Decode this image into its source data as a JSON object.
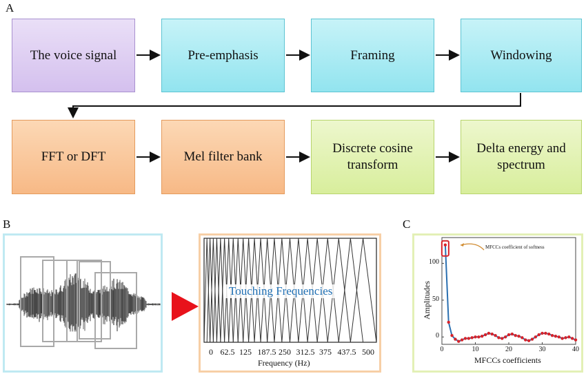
{
  "panel_a": {
    "letter": "A",
    "row1": [
      "The voice signal",
      "Pre-emphasis",
      "Framing",
      "Windowing"
    ],
    "row2": [
      "FFT or DFT",
      "Mel filter bank",
      "Discrete cosine transform",
      "Delta energy and spectrum"
    ]
  },
  "panel_b": {
    "letter": "B",
    "mel_label": "Touching Frequencies",
    "x_ticks": [
      "0",
      "62.5",
      "125",
      "187.5",
      "250",
      "312.5",
      "375",
      "437.5",
      "500"
    ],
    "xlabel": "Frequency (Hz)"
  },
  "panel_c": {
    "letter": "C",
    "annotation": "MFCCs coefficient of softness",
    "ylabel": "Amplitudes",
    "xlabel": "MFCCs coefficients"
  },
  "colors": {
    "arrow_red": "#e8121b",
    "curve_blue": "#2a6fb0",
    "marker_red": "#d8232a"
  },
  "chart_data": {
    "type": "line",
    "xlabel": "MFCCs coefficients",
    "ylabel": "Amplitudes",
    "x_ticks": [
      0,
      10,
      20,
      30,
      40
    ],
    "y_ticks": [
      0,
      50,
      100
    ],
    "xlim": [
      0,
      40
    ],
    "ylim": [
      -10,
      135
    ],
    "x": [
      1,
      2,
      3,
      4,
      5,
      6,
      7,
      8,
      9,
      10,
      11,
      12,
      13,
      14,
      15,
      16,
      17,
      18,
      19,
      20,
      21,
      22,
      23,
      24,
      25,
      26,
      27,
      28,
      29,
      30,
      31,
      32,
      33,
      34,
      35,
      36,
      37,
      38,
      39,
      40
    ],
    "values": [
      125,
      20,
      2,
      -3,
      -6,
      -4,
      -2,
      -2,
      -1,
      0,
      0,
      1,
      3,
      5,
      4,
      2,
      -1,
      -2,
      0,
      3,
      4,
      2,
      1,
      -1,
      -4,
      -5,
      -3,
      0,
      3,
      5,
      5,
      4,
      2,
      1,
      0,
      -2,
      -1,
      0,
      -2,
      -4
    ]
  }
}
